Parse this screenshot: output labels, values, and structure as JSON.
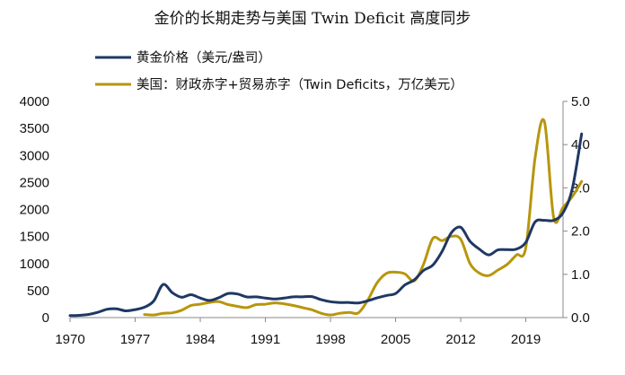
{
  "chart_data": {
    "type": "line",
    "title": "金价的长期走势与美国 Twin Deficit 高度同步",
    "x_ticks": [
      "1970",
      "1977",
      "1984",
      "1991",
      "1998",
      "2005",
      "2012",
      "2019"
    ],
    "xlim": [
      1970,
      2023
    ],
    "y_left": {
      "ticks": [
        "0",
        "500",
        "1000",
        "1500",
        "2000",
        "2500",
        "3000",
        "3500",
        "4000"
      ],
      "lim": [
        0,
        4000
      ]
    },
    "y_right": {
      "ticks": [
        "0.0",
        "1.0",
        "2.0",
        "3.0",
        "4.0",
        "5.0"
      ],
      "lim": [
        0,
        5
      ]
    },
    "grid": false,
    "legend_position": "top-left",
    "series": [
      {
        "name": "黄金价格（美元/盎司）",
        "axis": "left",
        "color": "#1f3864",
        "x": [
          1970,
          1971,
          1972,
          1973,
          1974,
          1975,
          1976,
          1977,
          1978,
          1979,
          1980,
          1981,
          1982,
          1983,
          1984,
          1985,
          1986,
          1987,
          1988,
          1989,
          1990,
          1991,
          1992,
          1993,
          1994,
          1995,
          1996,
          1997,
          1998,
          1999,
          2000,
          2001,
          2002,
          2003,
          2004,
          2005,
          2006,
          2007,
          2008,
          2009,
          2010,
          2011,
          2012,
          2013,
          2014,
          2015,
          2016,
          2017,
          2018,
          2019,
          2020,
          2021,
          2022,
          2023,
          2024,
          2025
        ],
        "y": [
          36,
          41,
          58,
          98,
          154,
          161,
          125,
          148,
          193,
          307,
          612,
          460,
          376,
          424,
          361,
          317,
          368,
          447,
          437,
          381,
          383,
          362,
          344,
          360,
          384,
          384,
          388,
          331,
          294,
          279,
          279,
          271,
          310,
          363,
          409,
          445,
          604,
          697,
          872,
          972,
          1225,
          1572,
          1669,
          1411,
          1266,
          1160,
          1251,
          1257,
          1268,
          1393,
          1770,
          1799,
          1800,
          1940,
          2390,
          3400
        ]
      },
      {
        "name": "美国：财政赤字+贸易赤字（Twin Deficits，万亿美元）",
        "axis": "right",
        "color": "#b8960c",
        "x": [
          1978,
          1979,
          1980,
          1981,
          1982,
          1983,
          1984,
          1985,
          1986,
          1987,
          1988,
          1989,
          1990,
          1991,
          1992,
          1993,
          1994,
          1995,
          1996,
          1997,
          1998,
          1999,
          2000,
          2001,
          2002,
          2003,
          2004,
          2005,
          2006,
          2007,
          2008,
          2009,
          2010,
          2011,
          2012,
          2013,
          2014,
          2015,
          2016,
          2017,
          2018,
          2019,
          2020,
          2021,
          2022,
          2023,
          2024,
          2025
        ],
        "y": [
          0.07,
          0.06,
          0.1,
          0.11,
          0.17,
          0.28,
          0.31,
          0.35,
          0.37,
          0.3,
          0.26,
          0.23,
          0.3,
          0.31,
          0.34,
          0.32,
          0.28,
          0.23,
          0.18,
          0.1,
          0.06,
          0.1,
          0.12,
          0.11,
          0.4,
          0.8,
          1.02,
          1.05,
          1.01,
          0.85,
          1.23,
          1.83,
          1.78,
          1.88,
          1.81,
          1.25,
          1.03,
          0.97,
          1.1,
          1.23,
          1.45,
          1.62,
          3.7,
          4.53,
          2.31,
          2.55,
          2.8,
          3.15
        ]
      }
    ]
  }
}
